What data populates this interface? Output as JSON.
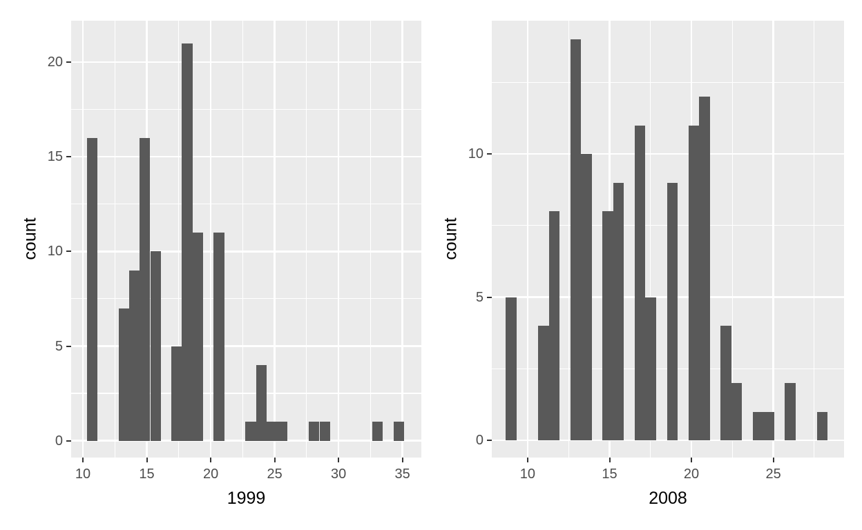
{
  "figure": {
    "background_color": "#FFFFFF",
    "panel_color": "#EBEBEB",
    "bar_color": "#595959",
    "grid_color": "#FFFFFF",
    "tick_mark_color": "#333333",
    "tick_label_color": "#4D4D4D",
    "axis_title_color": "#000000"
  },
  "chart_data": [
    {
      "type": "bar",
      "subtype": "histogram",
      "id": "p1999",
      "xlabel": "1999",
      "ylabel": "count",
      "grid": "on",
      "legend": "none",
      "xlim": [
        9.08,
        36.48
      ],
      "ylim": [
        -0.89,
        22.19
      ],
      "x_ticks": [
        10,
        15,
        20,
        25,
        30,
        35
      ],
      "x_tick_labels": [
        "10",
        "15",
        "20",
        "25",
        "30",
        "35"
      ],
      "y_ticks": [
        0,
        5,
        10,
        15,
        20
      ],
      "y_tick_labels": [
        "0",
        "5",
        "10",
        "15",
        "20"
      ],
      "x_minor_gridlines": [
        12.5,
        17.5,
        22.5,
        27.5,
        32.5
      ],
      "y_minor_gridlines": [
        2.5,
        7.5,
        12.5,
        17.5
      ],
      "bin_width": 0.8276,
      "bars": [
        {
          "bin_start": 10.3,
          "count": 16
        },
        {
          "bin_start": 12.783,
          "count": 7
        },
        {
          "bin_start": 13.61,
          "count": 9
        },
        {
          "bin_start": 14.438,
          "count": 16
        },
        {
          "bin_start": 15.266,
          "count": 10
        },
        {
          "bin_start": 16.921,
          "count": 5
        },
        {
          "bin_start": 17.748,
          "count": 21
        },
        {
          "bin_start": 18.576,
          "count": 11
        },
        {
          "bin_start": 20.231,
          "count": 11
        },
        {
          "bin_start": 22.714,
          "count": 1
        },
        {
          "bin_start": 23.542,
          "count": 4
        },
        {
          "bin_start": 24.369,
          "count": 1
        },
        {
          "bin_start": 25.197,
          "count": 1
        },
        {
          "bin_start": 27.68,
          "count": 1
        },
        {
          "bin_start": 28.507,
          "count": 1
        },
        {
          "bin_start": 32.645,
          "count": 1
        },
        {
          "bin_start": 34.3,
          "count": 1
        }
      ]
    },
    {
      "type": "bar",
      "subtype": "histogram",
      "id": "p2008",
      "xlabel": "2008",
      "ylabel": "count",
      "grid": "on",
      "legend": "none",
      "xlim": [
        7.81,
        29.32
      ],
      "ylim": [
        -0.6,
        14.65
      ],
      "x_ticks": [
        10,
        15,
        20,
        25
      ],
      "x_tick_labels": [
        "10",
        "15",
        "20",
        "25"
      ],
      "y_ticks": [
        0,
        5,
        10
      ],
      "y_tick_labels": [
        "0",
        "5",
        "10"
      ],
      "x_minor_gridlines": [
        12.5,
        17.5,
        22.5,
        27.5
      ],
      "y_minor_gridlines": [
        2.5,
        7.5,
        12.5
      ],
      "bin_width": 0.6552,
      "bars": [
        {
          "bin_start": 8.672,
          "count": 5
        },
        {
          "bin_start": 10.638,
          "count": 4
        },
        {
          "bin_start": 11.293,
          "count": 8
        },
        {
          "bin_start": 12.603,
          "count": 14
        },
        {
          "bin_start": 13.258,
          "count": 10
        },
        {
          "bin_start": 14.569,
          "count": 8
        },
        {
          "bin_start": 15.224,
          "count": 9
        },
        {
          "bin_start": 16.534,
          "count": 11
        },
        {
          "bin_start": 17.19,
          "count": 5
        },
        {
          "bin_start": 18.5,
          "count": 9
        },
        {
          "bin_start": 19.81,
          "count": 11
        },
        {
          "bin_start": 20.466,
          "count": 12
        },
        {
          "bin_start": 21.776,
          "count": 4
        },
        {
          "bin_start": 22.431,
          "count": 2
        },
        {
          "bin_start": 23.742,
          "count": 1
        },
        {
          "bin_start": 24.397,
          "count": 1
        },
        {
          "bin_start": 25.707,
          "count": 2
        },
        {
          "bin_start": 27.673,
          "count": 1
        }
      ]
    }
  ]
}
